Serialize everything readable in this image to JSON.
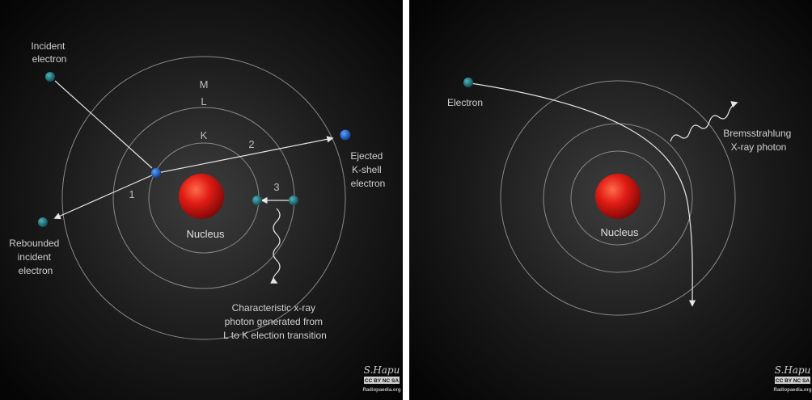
{
  "left_panel": {
    "shells": {
      "k": "K",
      "l": "L",
      "m": "M"
    },
    "nucleus": "Nucleus",
    "incident": [
      "Incident",
      "electron"
    ],
    "ejected": [
      "Ejected",
      "K-shell",
      "electron"
    ],
    "rebounded": [
      "Rebounded",
      "incident",
      "electron"
    ],
    "steps": {
      "one": "1",
      "two": "2",
      "three": "3"
    },
    "characteristic": [
      "Characteristic x-ray",
      "photon generated from",
      "L to K election transition"
    ],
    "signature": "S.Hapu",
    "license": "CC BY NC SA",
    "site": "Radiopaedia.org"
  },
  "right_panel": {
    "nucleus": "Nucleus",
    "electron": "Electron",
    "bremsstrahlung": [
      "Bremsstrahlung",
      "X-ray photon"
    ],
    "signature": "S.Hapu",
    "license": "CC BY NC SA",
    "site": "Radiopaedia.org"
  },
  "colors": {
    "background_center": "#3c3c3c",
    "background_edge": "#050505",
    "nucleus": "#e01c14",
    "electron_teal": "#1f6f78",
    "electron_blue": "#1e5fc8",
    "shell_line": "#8a8a8a",
    "arrow": "#e6e6e6"
  }
}
